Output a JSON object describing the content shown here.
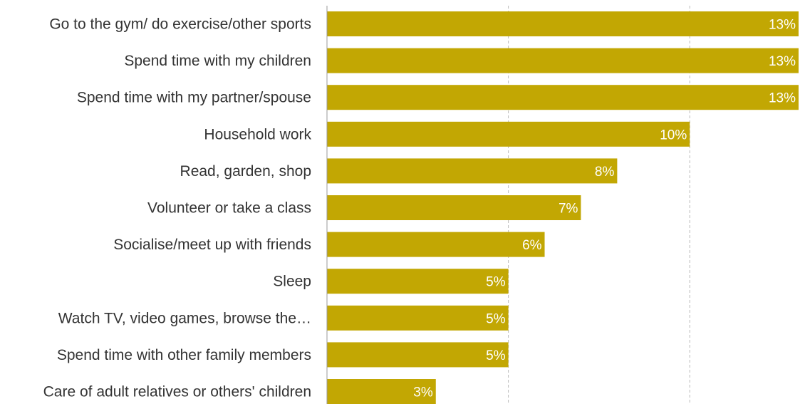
{
  "chart_data": {
    "type": "bar",
    "orientation": "horizontal",
    "categories": [
      "Go to the gym/ do exercise/other sports",
      "Spend time with my children",
      "Spend time with my partner/spouse",
      "Household work",
      "Read, garden, shop",
      "Volunteer or take a class",
      "Socialise/meet up with friends",
      "Sleep",
      "Watch TV, video games, browse the…",
      "Spend time with other family members",
      "Care of adult relatives or others' children"
    ],
    "values": [
      13,
      13,
      13,
      10,
      8,
      7,
      6,
      5,
      5,
      5,
      3
    ],
    "value_labels": [
      "13%",
      "13%",
      "13%",
      "10%",
      "8%",
      "7%",
      "6%",
      "5%",
      "5%",
      "5%",
      "3%"
    ],
    "xlim": [
      0,
      13
    ],
    "gridlines": [
      5,
      10
    ],
    "grid": true,
    "legend": "none",
    "title": "",
    "xlabel": "",
    "ylabel": "",
    "colors": {
      "bar": "#C2A703",
      "gridline": "#BBBBBB",
      "axis": "#999999",
      "category_text": "#333333",
      "value_text": "#FFFFFF"
    }
  }
}
